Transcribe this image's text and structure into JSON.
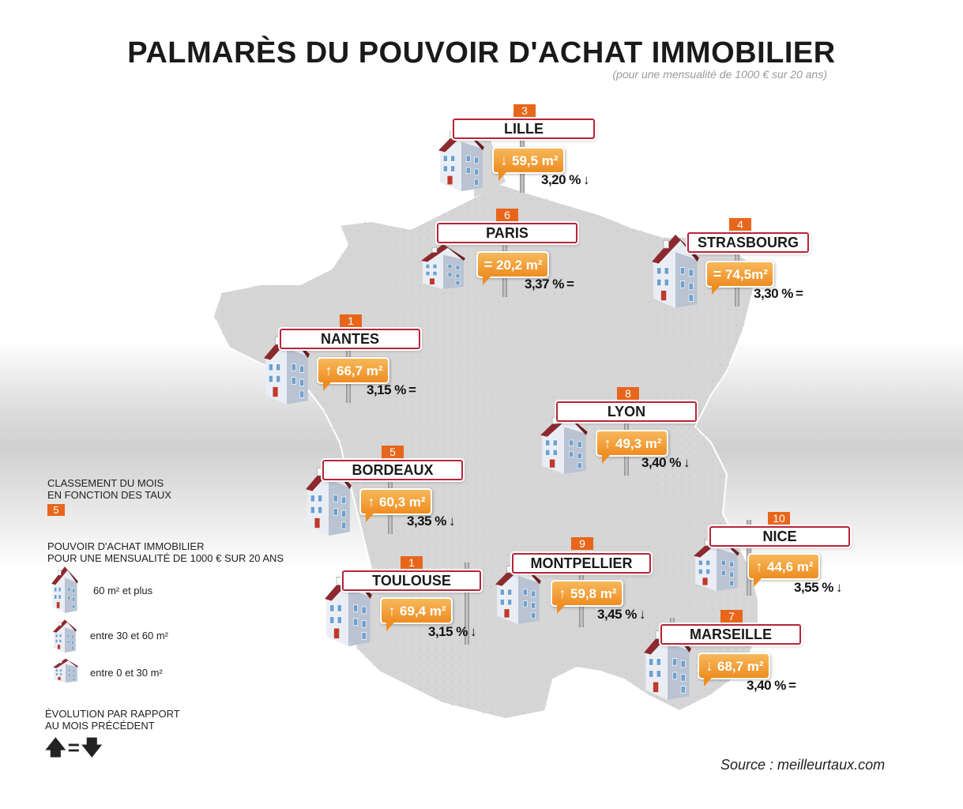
{
  "title": "PALMARÈS DU POUVOIR D'ACHAT IMMOBILIER",
  "subtitle": "(pour une mensualité de 1000 € sur 20 ans)",
  "colors": {
    "rank": "#e8661b",
    "sign_border": "#b8233a",
    "bubble": "#ee8d22",
    "map": "#d5d5d5"
  },
  "cities": [
    {
      "name": "LILLE",
      "rank": "3",
      "area": "59,5 m²",
      "area_trend": "↓",
      "rate": "3,20 %",
      "rate_trend": "↓"
    },
    {
      "name": "PARIS",
      "rank": "6",
      "area": "20,2 m²",
      "area_trend": "=",
      "rate": "3,37 %",
      "rate_trend": "="
    },
    {
      "name": "STRASBOURG",
      "rank": "4",
      "area": "74,5m²",
      "area_trend": "=",
      "rate": "3,30 %",
      "rate_trend": "="
    },
    {
      "name": "NANTES",
      "rank": "1",
      "area": "66,7 m²",
      "area_trend": "↑",
      "rate": "3,15 %",
      "rate_trend": "="
    },
    {
      "name": "LYON",
      "rank": "8",
      "area": "49,3 m²",
      "area_trend": "↑",
      "rate": "3,40 %",
      "rate_trend": "↓"
    },
    {
      "name": "BORDEAUX",
      "rank": "5",
      "area": "60,3 m²",
      "area_trend": "↑",
      "rate": "3,35 %",
      "rate_trend": "↓"
    },
    {
      "name": "NICE",
      "rank": "10",
      "area": "44,6 m²",
      "area_trend": "↑",
      "rate": "3,55 %",
      "rate_trend": "↓"
    },
    {
      "name": "TOULOUSE",
      "rank": "1",
      "area": "69,4 m²",
      "area_trend": "↑",
      "rate": "3,15 %",
      "rate_trend": "↓"
    },
    {
      "name": "MONTPELLIER",
      "rank": "9",
      "area": "59,8 m²",
      "area_trend": "↑",
      "rate": "3,45 %",
      "rate_trend": "↓"
    },
    {
      "name": "MARSEILLE",
      "rank": "7",
      "area": "68,7 m²",
      "area_trend": "↓",
      "rate": "3,40 %",
      "rate_trend": "="
    }
  ],
  "legend": {
    "rank_title_1": "CLASSEMENT DU MOIS",
    "rank_title_2": "EN FONCTION DES TAUX",
    "rank_example": "5",
    "power_title_1": "POUVOIR D'ACHAT IMMOBILIER",
    "power_title_2": "POUR UNE MENSUALITÉ DE 1000 € SUR 20 ANS",
    "size_large": "60 m² et plus",
    "size_medium": "entre 30 et 60 m²",
    "size_small": "entre 0 et 30 m²",
    "evolution_title_1": "ÉVOLUTION PAR RAPPORT",
    "evolution_title_2": "AU MOIS PRÉCÉDENT",
    "evolution_symbols": "🡅=🡇"
  },
  "source": "Source : meilleurtaux.com"
}
